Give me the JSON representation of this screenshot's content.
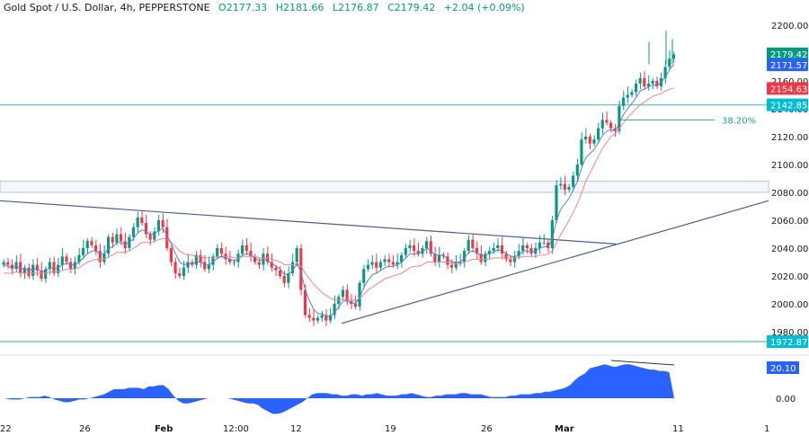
{
  "header": {
    "symbol": "Gold Spot / U.S. Dollar, 4h, PEPPERSTONE",
    "open": "O2177.33",
    "high": "H2181.66",
    "low": "L2176.87",
    "close": "C2179.42",
    "change": "+2.04 (+0.09%)"
  },
  "colors": {
    "up": "#089981",
    "down": "#f23645",
    "ema_fast": "#5b7fc7",
    "ema_slow": "#e8888f",
    "trendline": "#4a5f8a",
    "level": "#7cc4c4",
    "zone": "#b8c4de",
    "osc": "#2962ff"
  },
  "chart_data": [
    {
      "type": "candlestick",
      "title": "Gold Spot / U.S. Dollar, 4h, PEPPERSTONE",
      "y_ticks": [
        "2200.00",
        "2180.00",
        "2160.00",
        "2140.00",
        "2120.00",
        "2100.00",
        "2080.00",
        "2060.00",
        "2040.00",
        "2020.00",
        "2000.00",
        "1980.00"
      ],
      "x_ticks": [
        "22",
        "26",
        "Feb",
        "12:00",
        "12",
        "19",
        "26",
        "Mar",
        "11",
        "1"
      ],
      "ylim": [
        1965,
        2205
      ],
      "last_price": 2179.42,
      "price_tags": [
        {
          "label": "2179.42",
          "value": 2179.42,
          "color": "#089981"
        },
        {
          "label": "2171.57",
          "value": 2171.57,
          "color": "#2962ff"
        },
        {
          "label": "2154.63",
          "value": 2154.63,
          "color": "#f23645"
        },
        {
          "label": "2142.85",
          "value": 2142.85,
          "color": "#00bcd4"
        },
        {
          "label": "1972.87",
          "value": 1972.87,
          "color": "#00bcd4"
        }
      ],
      "horizontal_levels": [
        2142.85,
        1972.87
      ],
      "zone": [
        2080,
        2088
      ],
      "fib_level": {
        "label": "38.20%",
        "value": 2132
      },
      "trendlines": [
        {
          "name": "descending",
          "from": [
            0,
            2074
          ],
          "to": [
            685,
            2043
          ]
        },
        {
          "name": "ascending",
          "from": [
            380,
            1986
          ],
          "to": [
            855,
            2074
          ]
        }
      ],
      "close_path": [
        2030,
        2028,
        2025,
        2030,
        2022,
        2026,
        2020,
        2028,
        2024,
        2018,
        2025,
        2030,
        2022,
        2028,
        2034,
        2030,
        2025,
        2030,
        2035,
        2040,
        2045,
        2042,
        2038,
        2030,
        2036,
        2048,
        2044,
        2050,
        2045,
        2040,
        2048,
        2055,
        2062,
        2058,
        2050,
        2046,
        2052,
        2060,
        2055,
        2040,
        2030,
        2022,
        2020,
        2026,
        2030,
        2028,
        2035,
        2030,
        2025,
        2028,
        2034,
        2040,
        2036,
        2032,
        2030,
        2030,
        2036,
        2042,
        2038,
        2034,
        2030,
        2028,
        2036,
        2030,
        2026,
        2024,
        2020,
        2015,
        2022,
        2030,
        2040,
        2010,
        1992,
        1990,
        1988,
        1990,
        1992,
        1988,
        1992,
        2000,
        2005,
        2010,
        2002,
        2000,
        1998,
        2015,
        2025,
        2028,
        2030,
        2026,
        2030,
        2032,
        2030,
        2028,
        2030,
        2035,
        2040,
        2042,
        2038,
        2036,
        2040,
        2045,
        2036,
        2030,
        2035,
        2034,
        2028,
        2026,
        2030,
        2030,
        2038,
        2046,
        2040,
        2036,
        2030,
        2036,
        2038,
        2040,
        2042,
        2036,
        2032,
        2030,
        2034,
        2038,
        2042,
        2040,
        2036,
        2040,
        2044,
        2044,
        2040,
        2060,
        2085,
        2086,
        2082,
        2084,
        2092,
        2100,
        2118,
        2120,
        2115,
        2118,
        2126,
        2132,
        2130,
        2126,
        2124,
        2142,
        2148,
        2150,
        2152,
        2158,
        2162,
        2156,
        2158,
        2160,
        2156,
        2162,
        2170,
        2176,
        2179
      ],
      "ema_fast_path": [
        2028,
        2027,
        2026,
        2027,
        2025,
        2025,
        2024,
        2025,
        2025,
        2023,
        2024,
        2026,
        2025,
        2026,
        2028,
        2029,
        2028,
        2028,
        2030,
        2033,
        2036,
        2038,
        2038,
        2036,
        2036,
        2040,
        2041,
        2044,
        2044,
        2043,
        2044,
        2047,
        2051,
        2053,
        2052,
        2050,
        2050,
        2053,
        2054,
        2049,
        2043,
        2036,
        2030,
        2028,
        2029,
        2029,
        2030,
        2030,
        2028,
        2028,
        2030,
        2033,
        2034,
        2033,
        2032,
        2031,
        2032,
        2035,
        2036,
        2035,
        2033,
        2031,
        2032,
        2031,
        2029,
        2027,
        2025,
        2021,
        2021,
        2024,
        2029,
        2022,
        2010,
        2002,
        1996,
        1993,
        1993,
        1991,
        1991,
        1994,
        1998,
        2002,
        2002,
        2001,
        2000,
        2005,
        2012,
        2017,
        2021,
        2022,
        2024,
        2026,
        2027,
        2027,
        2028,
        2030,
        2033,
        2036,
        2036,
        2036,
        2037,
        2040,
        2038,
        2035,
        2035,
        2035,
        2032,
        2030,
        2030,
        2030,
        2033,
        2037,
        2038,
        2037,
        2034,
        2035,
        2036,
        2037,
        2039,
        2038,
        2036,
        2034,
        2034,
        2035,
        2038,
        2038,
        2037,
        2038,
        2040,
        2041,
        2041,
        2047,
        2060,
        2068,
        2072,
        2076,
        2082,
        2088,
        2098,
        2105,
        2108,
        2111,
        2116,
        2121,
        2124,
        2125,
        2124,
        2130,
        2136,
        2140,
        2144,
        2148,
        2153,
        2154,
        2156,
        2157,
        2157,
        2159,
        2163,
        2168,
        2172
      ],
      "ema_slow_path": [
        2022,
        2022,
        2022,
        2023,
        2022,
        2022,
        2022,
        2022,
        2022,
        2022,
        2022,
        2023,
        2023,
        2023,
        2024,
        2025,
        2025,
        2025,
        2026,
        2028,
        2030,
        2031,
        2032,
        2032,
        2032,
        2034,
        2035,
        2037,
        2037,
        2037,
        2038,
        2040,
        2042,
        2044,
        2044,
        2044,
        2045,
        2046,
        2047,
        2046,
        2044,
        2041,
        2038,
        2036,
        2035,
        2035,
        2034,
        2034,
        2033,
        2033,
        2033,
        2034,
        2034,
        2034,
        2034,
        2033,
        2033,
        2034,
        2034,
        2034,
        2034,
        2033,
        2033,
        2033,
        2032,
        2031,
        2030,
        2028,
        2028,
        2028,
        2029,
        2027,
        2022,
        2018,
        2014,
        2011,
        2008,
        2006,
        2004,
        2003,
        2003,
        2003,
        2003,
        2003,
        2002,
        2004,
        2007,
        2010,
        2012,
        2014,
        2016,
        2018,
        2019,
        2020,
        2021,
        2022,
        2024,
        2026,
        2027,
        2027,
        2028,
        2030,
        2030,
        2030,
        2030,
        2030,
        2030,
        2029,
        2029,
        2029,
        2030,
        2031,
        2032,
        2032,
        2032,
        2032,
        2032,
        2033,
        2033,
        2033,
        2033,
        2033,
        2033,
        2033,
        2034,
        2034,
        2034,
        2034,
        2035,
        2035,
        2036,
        2038,
        2044,
        2050,
        2055,
        2060,
        2066,
        2072,
        2080,
        2088,
        2094,
        2100,
        2106,
        2112,
        2116,
        2120,
        2122,
        2126,
        2130,
        2134,
        2137,
        2140,
        2143,
        2145,
        2147,
        2149,
        2150,
        2151,
        2153,
        2154,
        2155
      ],
      "oscillator": {
        "last_value": 20.1,
        "zero_label": "0.00",
        "values": [
          0,
          0,
          -1,
          -1,
          -1,
          0,
          1,
          1,
          1,
          2,
          1,
          -1,
          -2,
          -3,
          -3,
          -2,
          -1,
          -1,
          0,
          1,
          2,
          3,
          5,
          7,
          7,
          7,
          8,
          8,
          8,
          7,
          9,
          9,
          10,
          10,
          7,
          2,
          -2,
          -4,
          -4,
          -3,
          -2,
          -1,
          0,
          0,
          0,
          0,
          0,
          -1,
          -2,
          -3,
          -4,
          -4,
          -5,
          -8,
          -10,
          -12,
          -12,
          -11,
          -9,
          -7,
          -5,
          -3,
          0,
          3,
          4,
          4,
          4,
          3,
          3,
          2,
          2,
          3,
          3,
          2,
          3,
          3,
          4,
          3,
          2,
          2,
          2,
          3,
          3,
          4,
          3,
          2,
          1,
          1,
          2,
          2,
          3,
          3,
          3,
          4,
          4,
          3,
          3,
          3,
          2,
          1,
          1,
          1,
          1,
          2,
          2,
          3,
          3,
          3,
          4,
          4,
          5,
          5,
          6,
          7,
          8,
          10,
          14,
          17,
          19,
          23,
          24,
          25,
          26,
          25,
          24,
          25,
          26,
          26,
          25,
          24,
          23,
          22,
          22,
          21,
          21,
          20
        ]
      }
    }
  ]
}
